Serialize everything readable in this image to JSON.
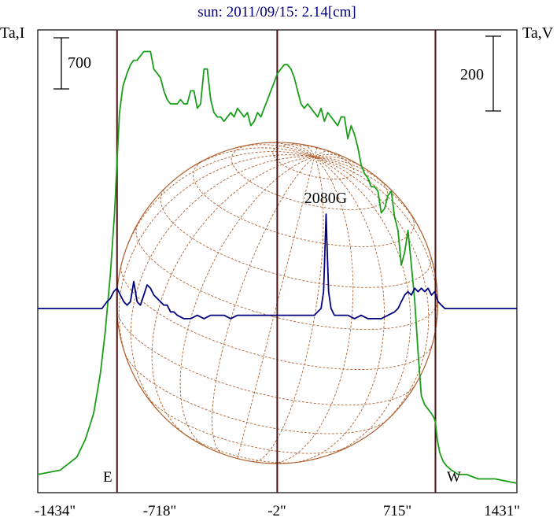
{
  "chart_data": {
    "type": "line",
    "title": "sun: 2011/09/15: 2.14[cm]",
    "ylabel_left": "Ta,I",
    "ylabel_right": "Ta,V",
    "xlim": [
      -1434,
      1431
    ],
    "x_ticks": [
      "-1434\"",
      "-718\"",
      "-2\"",
      "715\"",
      "1431\""
    ],
    "x_tick_values": [
      -1434,
      -718,
      -2,
      715,
      1431
    ],
    "limb_labels": {
      "east": "E",
      "west": "W"
    },
    "limb_positions": [
      -960,
      -2,
      944
    ],
    "scale_bars": [
      {
        "axis": "left",
        "label": "700",
        "value": 700
      },
      {
        "axis": "right",
        "label": "200",
        "value": 200
      }
    ],
    "annotation": {
      "text": "2080G",
      "x": 290
    },
    "disk": {
      "center_x": -2,
      "radius": 960
    },
    "colors": {
      "I": "#1a9e1a",
      "V": "#000080",
      "limb": "#4a1010",
      "disk": "#b06030"
    },
    "series": [
      {
        "key": "I",
        "x": [
          -1434,
          -1300,
          -1200,
          -1150,
          -1100,
          -1060,
          -1030,
          -1000,
          -975,
          -960,
          -945,
          -925,
          -900,
          -880,
          -860,
          -840,
          -820,
          -800,
          -780,
          -760,
          -740,
          -720,
          -700,
          -680,
          -660,
          -640,
          -620,
          -600,
          -580,
          -560,
          -540,
          -520,
          -500,
          -480,
          -460,
          -440,
          -420,
          -400,
          -380,
          -360,
          -340,
          -320,
          -300,
          -280,
          -260,
          -240,
          -220,
          -200,
          -180,
          -160,
          -140,
          -120,
          -100,
          -80,
          -60,
          -40,
          -20,
          0,
          20,
          40,
          60,
          80,
          100,
          120,
          140,
          160,
          180,
          200,
          220,
          240,
          260,
          280,
          300,
          320,
          340,
          360,
          380,
          400,
          420,
          440,
          460,
          480,
          500,
          520,
          540,
          560,
          580,
          600,
          620,
          640,
          660,
          680,
          700,
          720,
          740,
          760,
          780,
          800,
          820,
          840,
          860,
          880,
          900,
          920,
          935,
          944,
          955,
          970,
          990,
          1010,
          1040,
          1080,
          1130,
          1200,
          1300,
          1431
        ],
        "y": [
          0.02,
          0.03,
          0.06,
          0.1,
          0.16,
          0.25,
          0.35,
          0.48,
          0.62,
          0.74,
          0.85,
          0.91,
          0.94,
          0.96,
          0.97,
          0.97,
          0.98,
          0.99,
          0.99,
          0.99,
          0.95,
          0.94,
          0.93,
          0.9,
          0.88,
          0.87,
          0.87,
          0.87,
          0.88,
          0.87,
          0.87,
          0.9,
          0.9,
          0.86,
          0.87,
          0.95,
          0.95,
          0.88,
          0.85,
          0.84,
          0.84,
          0.83,
          0.84,
          0.85,
          0.84,
          0.86,
          0.85,
          0.84,
          0.85,
          0.82,
          0.83,
          0.85,
          0.84,
          0.86,
          0.88,
          0.9,
          0.92,
          0.94,
          0.95,
          0.96,
          0.96,
          0.95,
          0.93,
          0.9,
          0.87,
          0.86,
          0.87,
          0.86,
          0.85,
          0.84,
          0.86,
          0.83,
          0.85,
          0.84,
          0.83,
          0.82,
          0.84,
          0.84,
          0.79,
          0.82,
          0.8,
          0.77,
          0.73,
          0.71,
          0.7,
          0.68,
          0.68,
          0.67,
          0.62,
          0.63,
          0.66,
          0.67,
          0.61,
          0.58,
          0.5,
          0.53,
          0.58,
          0.5,
          0.42,
          0.3,
          0.2,
          0.18,
          0.17,
          0.16,
          0.15,
          0.14,
          0.1,
          0.07,
          0.05,
          0.04,
          0.03,
          0.02,
          0.02,
          0.01,
          0.01,
          0.0
        ]
      },
      {
        "key": "V",
        "x": [
          -1434,
          -1150,
          -1100,
          -1050,
          -1020,
          -1000,
          -980,
          -960,
          -940,
          -920,
          -900,
          -880,
          -860,
          -840,
          -820,
          -800,
          -780,
          -760,
          -740,
          -720,
          -700,
          -680,
          -660,
          -640,
          -620,
          -600,
          -560,
          -520,
          -480,
          -440,
          -400,
          -360,
          -320,
          -280,
          -240,
          -200,
          -160,
          -120,
          -80,
          -40,
          0,
          40,
          80,
          120,
          160,
          190,
          220,
          240,
          260,
          275,
          285,
          290,
          295,
          305,
          320,
          340,
          380,
          420,
          460,
          500,
          540,
          580,
          620,
          660,
          700,
          720,
          740,
          760,
          780,
          800,
          820,
          840,
          860,
          880,
          900,
          920,
          940,
          960,
          980,
          1000,
          1040,
          1080,
          1120,
          1200,
          1300,
          1431
        ],
        "y": [
          0.0,
          0.0,
          0.0,
          0.0,
          0.02,
          0.03,
          0.05,
          0.06,
          0.04,
          0.02,
          0.01,
          0.02,
          0.08,
          0.02,
          0.01,
          0.04,
          0.07,
          0.06,
          0.04,
          0.03,
          0.02,
          0.01,
          0.01,
          -0.01,
          -0.01,
          -0.02,
          -0.03,
          -0.03,
          -0.02,
          -0.03,
          -0.02,
          -0.02,
          -0.02,
          -0.03,
          -0.02,
          -0.02,
          -0.02,
          -0.02,
          -0.02,
          -0.02,
          -0.02,
          -0.02,
          -0.02,
          -0.02,
          -0.02,
          -0.02,
          -0.02,
          -0.01,
          0.0,
          0.05,
          0.2,
          0.28,
          0.2,
          0.05,
          0.0,
          -0.02,
          -0.02,
          -0.02,
          -0.03,
          -0.02,
          -0.03,
          -0.03,
          -0.03,
          -0.02,
          -0.01,
          0.0,
          0.02,
          0.04,
          0.05,
          0.04,
          0.06,
          0.05,
          0.06,
          0.05,
          0.06,
          0.04,
          0.05,
          0.02,
          0.01,
          0.0,
          0.0,
          0.0,
          0.0,
          0.0,
          0.0,
          0.0
        ]
      }
    ]
  }
}
